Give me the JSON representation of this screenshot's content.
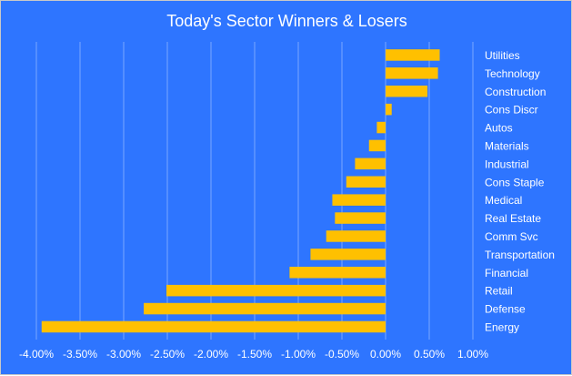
{
  "chart_data": {
    "type": "bar",
    "orientation": "horizontal",
    "title": "Today's Sector Winners & Losers",
    "xlabel": "",
    "ylabel": "",
    "xlim": [
      -0.04,
      0.01
    ],
    "x_ticks": [
      -0.04,
      -0.035,
      -0.03,
      -0.025,
      -0.02,
      -0.015,
      -0.01,
      -0.005,
      0,
      0.005,
      0.01
    ],
    "x_tick_labels": [
      "-4.00%",
      "-3.50%",
      "-3.00%",
      "-2.50%",
      "-2.00%",
      "-1.50%",
      "-1.00%",
      "-0.50%",
      "0.00%",
      "0.50%",
      "1.00%"
    ],
    "grid": "vertical",
    "legend": "none",
    "categories": [
      "Utilities",
      "Technology",
      "Construction",
      "Cons Discr",
      "Autos",
      "Materials",
      "Industrial",
      "Cons Staple",
      "Medical",
      "Real Estate",
      "Comm Svc",
      "Transportation",
      "Financial",
      "Retail",
      "Defense",
      "Energy"
    ],
    "values": [
      0.0062,
      0.006,
      0.0048,
      0.0007,
      -0.001,
      -0.0019,
      -0.0035,
      -0.0045,
      -0.0061,
      -0.0058,
      -0.0068,
      -0.0086,
      -0.011,
      -0.0251,
      -0.0277,
      -0.0394
    ]
  },
  "colors": {
    "background": "#2e75ff",
    "bar": "#ffc000",
    "grid": "#7aa7ff",
    "text": "#ffffff"
  }
}
